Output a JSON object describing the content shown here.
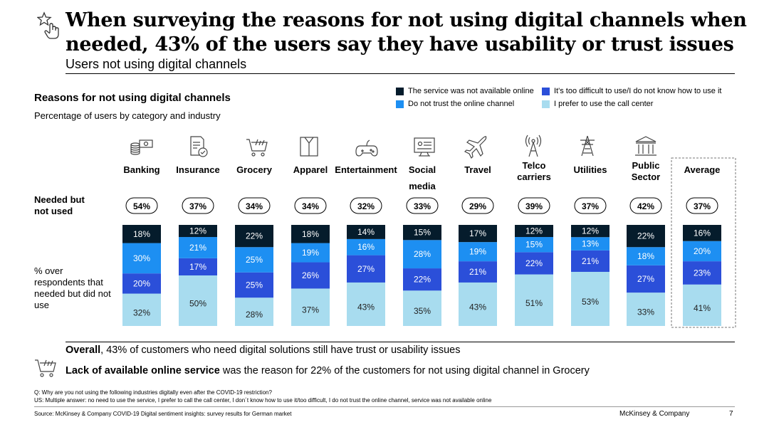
{
  "header": {
    "title": "When surveying the reasons for not using digital channels when needed, 43% of the users say they have usability or trust issues",
    "subtitle": "Users not using digital channels"
  },
  "chart_heading": "Reasons for not using digital channels",
  "chart_subheading": "Percentage of users by category and industry",
  "row_labels": {
    "needed": "Needed but not used",
    "respondents": "% over respondents that needed but did not use"
  },
  "chart_data": {
    "type": "bar",
    "stacked": true,
    "title": "Reasons for not using digital channels",
    "categories": [
      "Banking",
      "Insurance",
      "Grocery",
      "Apparel",
      "Entertainment",
      "Social media",
      "Travel",
      "Telco carriers",
      "Utilities",
      "Public Sector",
      "Average"
    ],
    "needed_but_not_used": [
      "54%",
      "37%",
      "34%",
      "34%",
      "32%",
      "33%",
      "29%",
      "39%",
      "37%",
      "42%",
      "37%"
    ],
    "series": [
      {
        "name": "I prefer to use the call center",
        "color": "#a8dcef",
        "values": [
          32,
          50,
          28,
          37,
          43,
          35,
          43,
          51,
          53,
          33,
          41
        ]
      },
      {
        "name": "It's too difficult to use/I do not know how to use it",
        "color": "#2b4fd9",
        "values": [
          20,
          17,
          25,
          26,
          27,
          22,
          21,
          22,
          21,
          27,
          23
        ]
      },
      {
        "name": "Do not trust the online channel",
        "color": "#1d8ff2",
        "values": [
          30,
          21,
          25,
          19,
          16,
          28,
          19,
          15,
          13,
          18,
          20
        ]
      },
      {
        "name": "The service was not available online",
        "color": "#051c2c",
        "values": [
          18,
          12,
          22,
          18,
          14,
          15,
          17,
          12,
          12,
          22,
          16
        ]
      }
    ],
    "ylim": [
      0,
      100
    ],
    "legend": [
      {
        "label": "The service was not available online",
        "color": "#051c2c"
      },
      {
        "label": "It's too difficult to use/I do not know how to use it",
        "color": "#2b4fd9"
      },
      {
        "label": "Do not trust the online channel",
        "color": "#1d8ff2"
      },
      {
        "label": "I prefer to use the call center",
        "color": "#a8dcef"
      }
    ],
    "highlighted_category": "Average"
  },
  "category_icons": [
    "money-stack-icon",
    "document-check-icon",
    "shopping-cart-icon",
    "shirt-icon",
    "game-controller-icon",
    "social-screen-icon",
    "airplane-icon",
    "telco-tower-icon",
    "power-pylon-icon",
    "public-building-icon"
  ],
  "takeaways": {
    "overall_bold": "Overall",
    "overall_rest": ", 43% of customers who need digital solutions still have trust or usability issues",
    "insight_bold": "Lack of available online service",
    "insight_rest": " was the reason for 22% of the customers for not using digital channel in Grocery"
  },
  "footnote": {
    "question": "Q: Why are you not using the following industries digitally even after the COVID-19 restriction?",
    "answers": "US: Multiple answer: no need to use the service, I prefer to call the call center, I don´t know how to use it/too difficult, I do not trust the online channel, service was not available online"
  },
  "source": "Source: McKinsey & Company COVID-19 Digital sentiment insights: survey results for German market",
  "brand": "McKinsey & Company",
  "page_number": "7"
}
